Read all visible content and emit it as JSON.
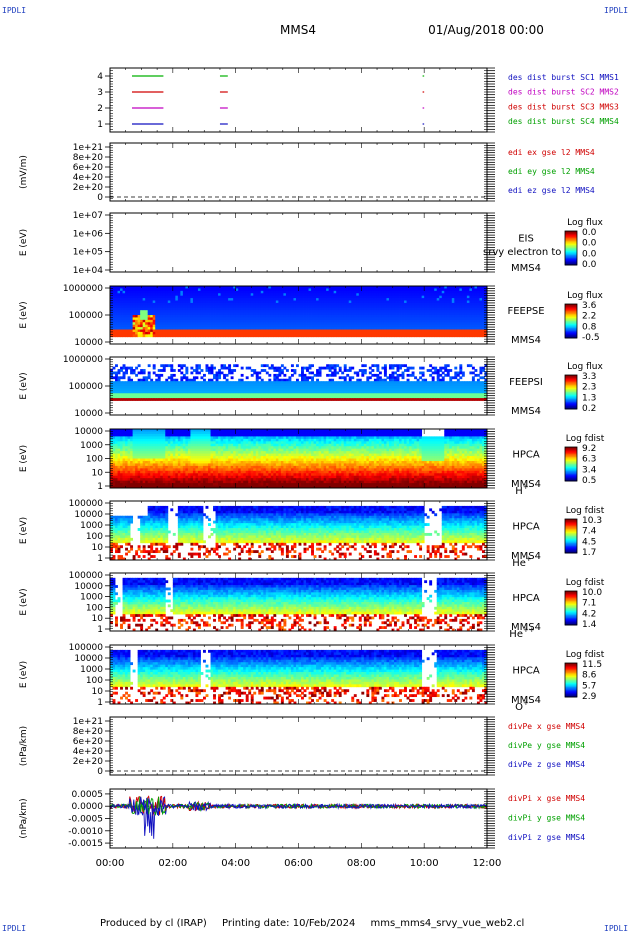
{
  "header": {
    "title": "MMS4",
    "date": "01/Aug/2018 00:00"
  },
  "corners": {
    "top_left": "IPDLI",
    "top_right": "IPDLI",
    "bottom_left": "IPDLI",
    "bottom_right": "IPDLI"
  },
  "footer": {
    "produced_by": "Produced by cl (IRAP)",
    "printing_date": "Printing date: 10/Feb/2024",
    "script": "mms_mms4_srvy_vue_web2.cl"
  },
  "chart_data": {
    "type": "heatmap",
    "x_ticks": [
      "00:00",
      "02:00",
      "04:00",
      "06:00",
      "08:00",
      "10:00",
      "12:00"
    ],
    "x_range_hours": [
      0,
      12
    ],
    "panels": [
      {
        "id": "burst",
        "type": "line",
        "ytick_labels": [
          "4",
          "3",
          "2",
          "1"
        ],
        "right_labels": [
          {
            "text": "des dist burst SC1 MMS1",
            "color": "#1010c0"
          },
          {
            "text": "des dist burst SC2 MMS2",
            "color": "#c000c0"
          },
          {
            "text": "des dist burst SC3 MMS3",
            "color": "#d00000"
          },
          {
            "text": "des dist burst SC4 MMS4",
            "color": "#00a000"
          }
        ],
        "series": [
          {
            "level": 4,
            "color": "#00b000",
            "segments_hours": [
              [
                0.7,
                1.7
              ],
              [
                3.5,
                3.75
              ],
              [
                9.95,
                10.0
              ]
            ]
          },
          {
            "level": 3,
            "color": "#d00000",
            "segments_hours": [
              [
                0.7,
                1.7
              ],
              [
                3.5,
                3.75
              ],
              [
                9.95,
                10.0
              ]
            ]
          },
          {
            "level": 2,
            "color": "#c000c0",
            "segments_hours": [
              [
                0.7,
                1.7
              ],
              [
                3.5,
                3.75
              ],
              [
                9.95,
                10.0
              ]
            ]
          },
          {
            "level": 1,
            "color": "#1010c0",
            "segments_hours": [
              [
                0.7,
                1.7
              ],
              [
                3.5,
                3.75
              ],
              [
                9.95,
                10.0
              ]
            ]
          }
        ]
      },
      {
        "id": "edi",
        "type": "line",
        "ylabel": "(mV/m)",
        "ytick_labels": [
          "1e+21",
          "8e+20",
          "6e+20",
          "4e+20",
          "2e+20",
          "0"
        ],
        "right_labels": [
          {
            "text": "edi ex gse l2 MMS4",
            "color": "#d00000"
          },
          {
            "text": "edi ey gse l2 MMS4",
            "color": "#00a000"
          },
          {
            "text": "edi ez gse l2 MMS4",
            "color": "#1010c0"
          }
        ]
      },
      {
        "id": "eis",
        "type": "heatmap",
        "ylabel": "E (eV)",
        "ytick_labels": [
          "1e+07",
          "1e+06",
          "1e+05",
          "1e+04"
        ],
        "instrument": "EIS",
        "instrument2": "MMS4",
        "overlay_text": "srvy electron to",
        "colorbar_title": "Log flux",
        "colorbar_labels": [
          "0.0",
          "0.0",
          "0.0",
          "0.0"
        ]
      },
      {
        "id": "feeps_e",
        "type": "heatmap",
        "ylabel": "E (eV)",
        "ytick_labels": [
          "1000000",
          "100000",
          "10000"
        ],
        "instrument": "FEEPSE",
        "instrument2": "MMS4",
        "colorbar_title": "Log flux",
        "colorbar_labels": [
          "3.6",
          "2.2",
          "0.8",
          "-0.5"
        ]
      },
      {
        "id": "feeps_i",
        "type": "heatmap",
        "ylabel": "E (eV)",
        "ytick_labels": [
          "1000000",
          "100000",
          "10000"
        ],
        "instrument": "FEEPSI",
        "instrument2": "MMS4",
        "colorbar_title": "Log flux",
        "colorbar_labels": [
          "3.3",
          "2.3",
          "1.3",
          "0.2"
        ]
      },
      {
        "id": "hpca_h",
        "type": "heatmap",
        "ylabel": "E (eV)",
        "ytick_labels": [
          "10000",
          "1000",
          "100",
          "10",
          "1"
        ],
        "instrument": "HPCA",
        "instrument2": "MMS4",
        "species": "H",
        "species_sup": "+",
        "colorbar_title": "Log fdist",
        "colorbar_labels": [
          "9.2",
          "6.3",
          "3.4",
          "0.5"
        ]
      },
      {
        "id": "hpca_he1",
        "type": "heatmap",
        "ylabel": "E (eV)",
        "ytick_labels": [
          "100000",
          "10000",
          "1000",
          "100",
          "10",
          "1"
        ],
        "instrument": "HPCA",
        "instrument2": "MMS4",
        "species": "He",
        "species_sup": "+",
        "colorbar_title": "Log fdist",
        "colorbar_labels": [
          "10.3",
          "7.4",
          "4.5",
          "1.7"
        ]
      },
      {
        "id": "hpca_he2",
        "type": "heatmap",
        "ylabel": "E (eV)",
        "ytick_labels": [
          "100000",
          "10000",
          "1000",
          "100",
          "10",
          "1"
        ],
        "instrument": "HPCA",
        "instrument2": "MMS4",
        "species": "He",
        "species_sup": "++",
        "colorbar_title": "Log fdist",
        "colorbar_labels": [
          "10.0",
          "7.1",
          "4.2",
          "1.4"
        ]
      },
      {
        "id": "hpca_o",
        "type": "heatmap",
        "ylabel": "E (eV)",
        "ytick_labels": [
          "100000",
          "10000",
          "1000",
          "100",
          "10",
          "1"
        ],
        "instrument": "HPCA",
        "instrument2": "MMS4",
        "species": "O",
        "species_sup": "+",
        "colorbar_title": "Log fdist",
        "colorbar_labels": [
          "11.5",
          "8.6",
          "5.7",
          "2.9"
        ]
      },
      {
        "id": "divpe",
        "type": "line",
        "ylabel": "(nPa/km)",
        "ytick_labels": [
          "1e+21",
          "8e+20",
          "6e+20",
          "4e+20",
          "2e+20",
          "0"
        ],
        "right_labels": [
          {
            "text": "divPe x gse MMS4",
            "color": "#d00000"
          },
          {
            "text": "divPe y gse MMS4",
            "color": "#00a000"
          },
          {
            "text": "divPe z gse MMS4",
            "color": "#1010c0"
          }
        ]
      },
      {
        "id": "divpi",
        "type": "line",
        "ylabel": "(nPa/km)",
        "ytick_labels": [
          "0.0005",
          "0.0000",
          "-0.0005",
          "-0.0010",
          "-0.0015"
        ],
        "ylim": [
          -0.0017,
          0.0007
        ],
        "right_labels": [
          {
            "text": "divPi x gse MMS4",
            "color": "#d00000"
          },
          {
            "text": "divPi y gse MMS4",
            "color": "#00a000"
          },
          {
            "text": "divPi z gse MMS4",
            "color": "#1010c0"
          }
        ]
      }
    ]
  }
}
